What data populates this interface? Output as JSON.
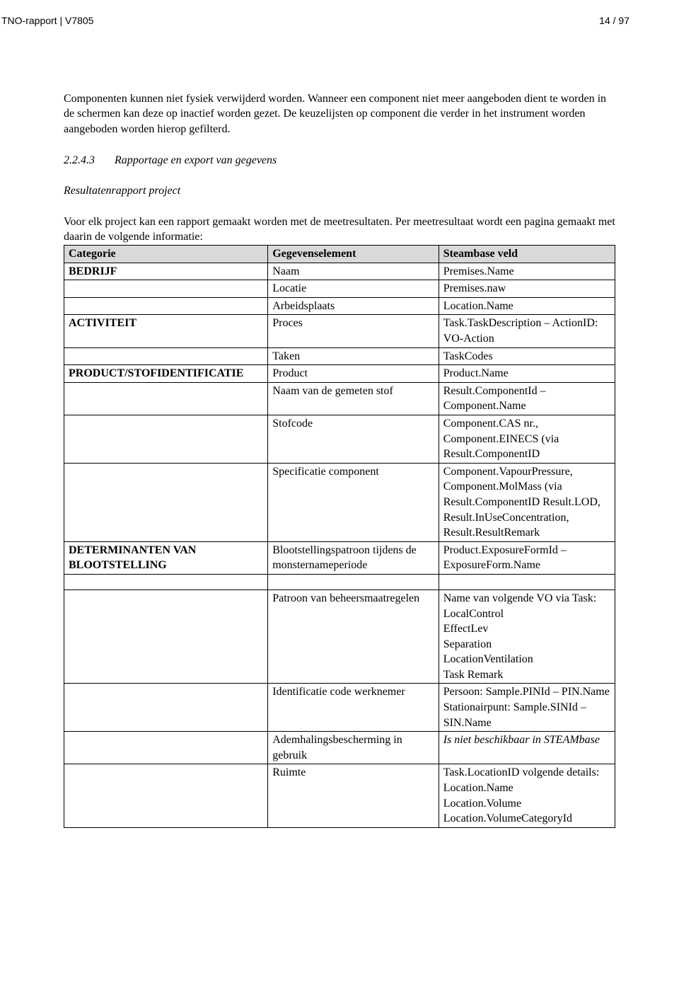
{
  "header": {
    "left": "TNO-rapport | V7805",
    "right": "14 / 97"
  },
  "para1": "Componenten kunnen niet fysiek verwijderd worden. Wanneer een component niet meer aangeboden dient te worden in de schermen kan deze op inactief worden gezet. De keuzelijsten op component die verder in het instrument worden aangeboden worden hierop gefilterd.",
  "section": {
    "num": "2.2.4.3",
    "title": "Rapportage en export van gegevens"
  },
  "subhead": "Resultatenrapport project",
  "para2": "Voor elk project kan een rapport gemaakt worden met de meetresultaten. Per meetresultaat wordt een pagina gemaakt met daarin de volgende informatie:",
  "table": {
    "head": [
      "Categorie",
      "Gegevenselement",
      "Steambase veld"
    ],
    "rows": [
      [
        "BEDRIJF",
        "Naam",
        "Premises.Name",
        true
      ],
      [
        "",
        "Locatie",
        "Premises.naw",
        false
      ],
      [
        "",
        "Arbeidsplaats",
        "Location.Name",
        false
      ],
      [
        "ACTIVITEIT",
        "Proces",
        "Task.TaskDescription – ActionID: VO-Action",
        true
      ],
      [
        "",
        "Taken",
        "TaskCodes",
        false
      ],
      [
        "PRODUCT/STOFIDENTIFICATIE",
        "Product",
        "Product.Name",
        true
      ],
      [
        "",
        "Naam van de gemeten stof",
        "Result.ComponentId – Component.Name",
        false
      ],
      [
        "",
        "Stofcode",
        "Component.CAS nr., Component.EINECS (via Result.ComponentID",
        false
      ],
      [
        "",
        "Specificatie component",
        "Component.VapourPressure, Component.MolMass  (via Result.ComponentID Result.LOD, Result.InUseConcentration, Result.ResultRemark",
        false
      ],
      [
        "DETERMINANTEN VAN BLOOTSTELLING",
        "Blootstellingspatroon tijdens de monsternameperiode",
        "Product.ExposureFormId – ExposureForm.Name",
        true
      ]
    ],
    "rows2": [
      [
        "",
        "Patroon van beheersmaatregelen",
        "Name van volgende VO via Task:\nLocalControl\nEffectLev\nSeparation\nLocationVentilation\nTask Remark",
        false
      ],
      [
        "",
        "Identificatie code werknemer",
        "Persoon: Sample.PINId – PIN.Name\nStationairpunt: Sample.SINId – SIN.Name",
        false
      ],
      [
        "",
        "Ademhalingsbescherming in gebruik",
        "Is niet beschikbaar in STEAMbase",
        false,
        true
      ],
      [
        "",
        "Ruimte",
        "Task.LocationID volgende details:\nLocation.Name\nLocation.Volume\nLocation.VolumeCategoryId",
        false
      ]
    ]
  }
}
